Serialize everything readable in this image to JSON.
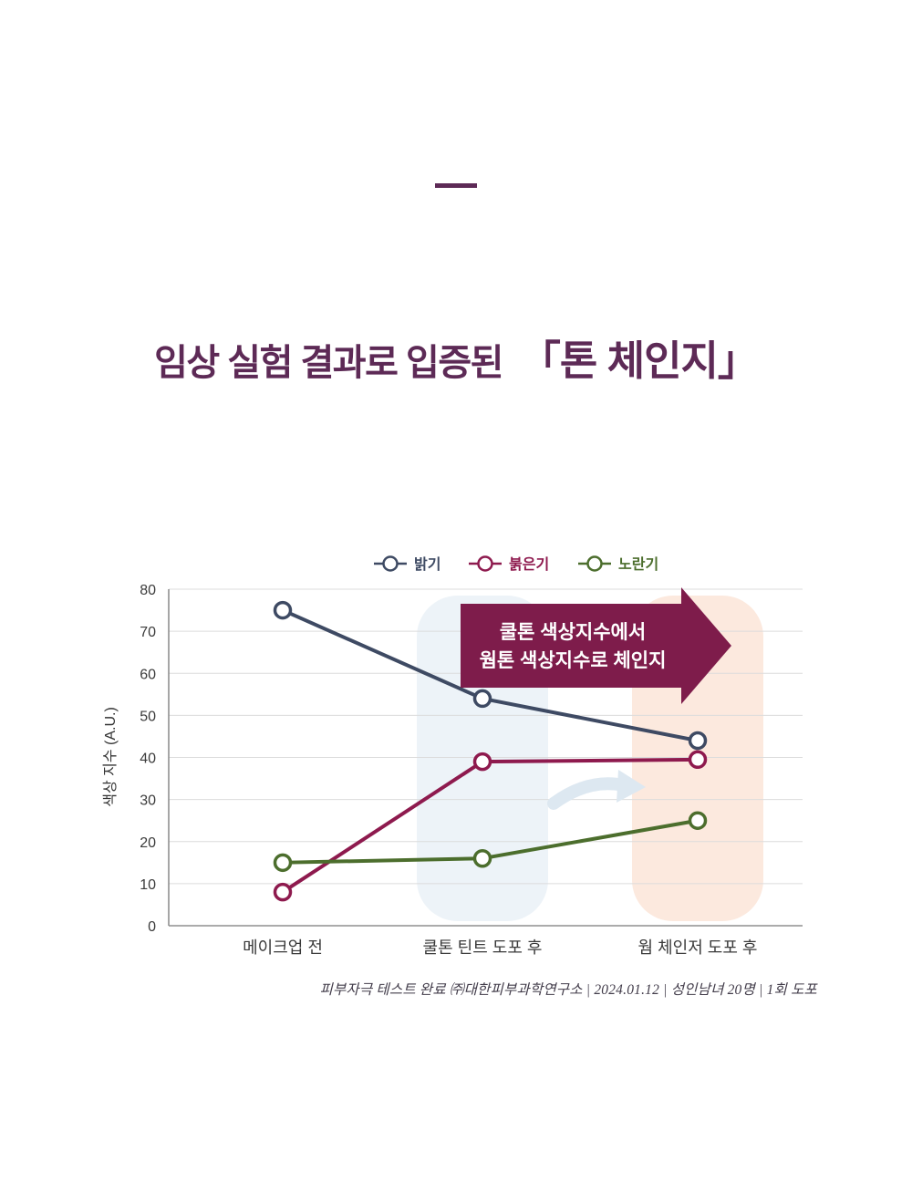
{
  "title": {
    "prefix": "임상 실험 결과로 입증된",
    "highlight": "「톤 체인지」",
    "color": "#5d2a56"
  },
  "divider_color": "#5d2a56",
  "chart_data": {
    "type": "line",
    "categories": [
      "메이크업 전",
      "쿨톤 틴트 도포 후",
      "웜 체인저 도포 후"
    ],
    "series": [
      {
        "name": "밝기",
        "color": "#3e4a63",
        "values": [
          75,
          54,
          44
        ]
      },
      {
        "name": "붉은기",
        "color": "#8e1a4e",
        "values": [
          8,
          39,
          39.5
        ]
      },
      {
        "name": "노란기",
        "color": "#4c6e2d",
        "values": [
          15,
          16,
          25
        ]
      }
    ],
    "ylabel": "색상 지수 (A.U.)",
    "ylim": [
      0,
      80
    ],
    "yticks": [
      0,
      10,
      20,
      30,
      40,
      50,
      60,
      70,
      80
    ],
    "grid": true,
    "legend_position": "top",
    "highlights": [
      {
        "category_index": 1,
        "color": "#edf3f8"
      },
      {
        "category_index": 2,
        "color": "#fce9de"
      }
    ],
    "annotation": {
      "lines": [
        "쿨톤 색상지수에서",
        "웜톤 색상지수로 체인지"
      ],
      "bg": "#7e1c4b",
      "text_color": "#ffffff"
    },
    "swoosh_color": "#dde8f1",
    "axis_color": "#8f8f8f",
    "grid_color": "#dcdcdc",
    "tick_color": "#3b3b3b"
  },
  "footer": {
    "text": "피부자극 테스트 완료 ㈜대한피부과학연구소 | 2024.01.12 | 성인남녀 20명 | 1회 도포"
  }
}
